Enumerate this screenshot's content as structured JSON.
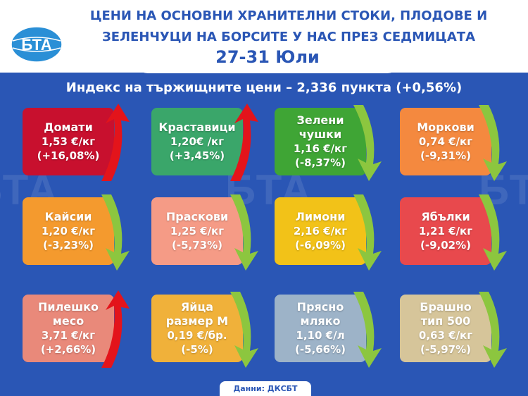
{
  "header": {
    "title_line1": "ЦЕНИ НА ОСНОВНИ ХРАНИТЕЛНИ СТОКИ, ПЛОДОВЕ И",
    "title_line2": "ЗЕЛЕНЧУЦИ НА БОРСИТЕ У НАС ПРЕЗ СЕДМИЦАТА",
    "date": "27-31 Юли",
    "logo_text": "БТА"
  },
  "index_line": "Индекс на тържищните цени – 2,336 пункта (+0,56%)",
  "watermark": "БТА",
  "items": [
    {
      "name": "Домати",
      "price": "1,53 €/кг",
      "change": "(+16,08%)",
      "direction": "up",
      "color": "#c8102e"
    },
    {
      "name": "Краставици",
      "price": "1,20€ /кг",
      "change": "(+3,45%)",
      "direction": "up",
      "color": "#3aa66a"
    },
    {
      "name": "Зелени",
      "name2": "чушки",
      "price": "1,16 €/кг",
      "change": "(-8,37%)",
      "direction": "down",
      "color": "#3fa535"
    },
    {
      "name": "Моркови",
      "price": "0,74 €/кг",
      "change": "(-9,31%)",
      "direction": "down",
      "color": "#f4893f"
    },
    {
      "name": "Кайсии",
      "price": "1,20 €/кг",
      "change": "(-3,23%)",
      "direction": "down",
      "color": "#f49a2e"
    },
    {
      "name": "Праскови",
      "price": "1,25 €/кг",
      "change": "(-5,73%)",
      "direction": "down",
      "color": "#f59b86"
    },
    {
      "name": "Лимони",
      "price": "2,16 €/кг",
      "change": "(-6,09%)",
      "direction": "down",
      "color": "#f2c218"
    },
    {
      "name": "Ябълки",
      "price": "1,21 €/кг",
      "change": "(-9,02%)",
      "direction": "down",
      "color": "#e8494d"
    },
    {
      "name": "Пилешко",
      "name2": "месо",
      "price": "3,71 €/кг",
      "change": "(+2,66%)",
      "direction": "up",
      "color": "#e9897a"
    },
    {
      "name": "Яйца",
      "name2": "размер М",
      "price": "0,19 €/бр.",
      "change": "(-5%)",
      "direction": "down",
      "color": "#f0b13a"
    },
    {
      "name": "Прясно",
      "name2": "мляко",
      "price": "1,10 €/л",
      "change": "(-5,66%)",
      "direction": "down",
      "color": "#9db3c8"
    },
    {
      "name": "Брашно",
      "name2": "тип 500",
      "price": "0,63 €/кг",
      "change": "(-5,97%)",
      "direction": "down",
      "color": "#d6c59a"
    }
  ],
  "arrow_colors": {
    "up": "#e3141b",
    "down": "#8cc63f"
  },
  "source": "Данни: ДКСБТ"
}
